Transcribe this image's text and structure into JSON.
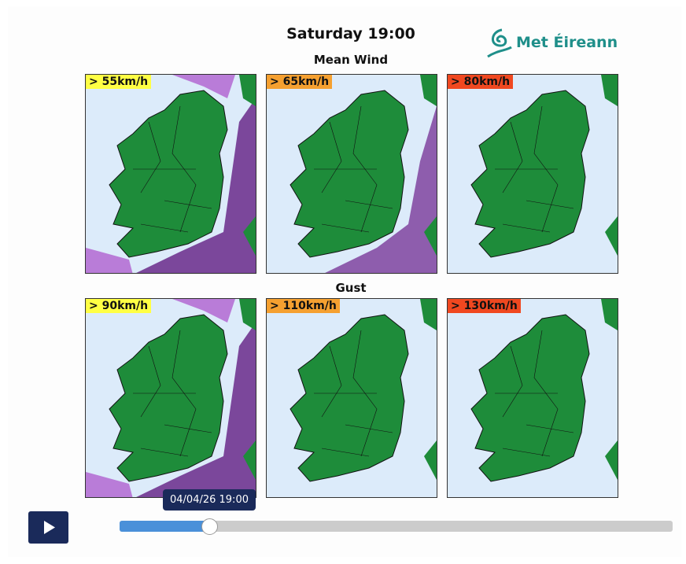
{
  "header": {
    "title": "Saturday 19:00",
    "logo": "Met Éireann"
  },
  "sections": [
    {
      "title": "Mean Wind",
      "panels": [
        {
          "label": "> 55km/h"
        },
        {
          "label": "> 65km/h"
        },
        {
          "label": "> 80km/h"
        }
      ]
    },
    {
      "title": "Gust",
      "panels": [
        {
          "label": "> 90km/h"
        },
        {
          "label": "> 110km/h"
        },
        {
          "label": "> 130km/h"
        }
      ]
    }
  ],
  "slider": {
    "tooltip": "04/04/26 19:00"
  }
}
